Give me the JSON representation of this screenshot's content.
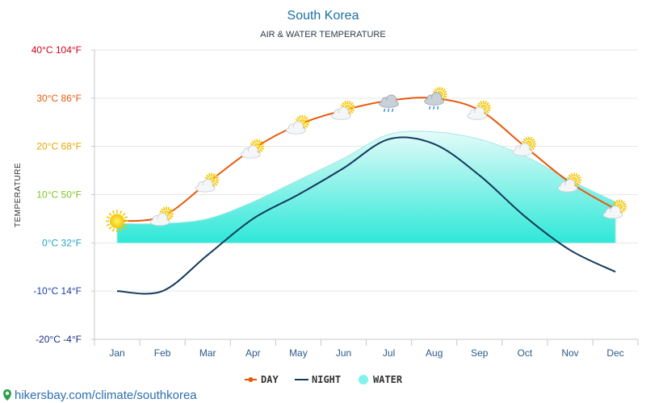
{
  "chart_data": {
    "type": "line",
    "title": "South Korea",
    "subtitle": "AIR & WATER TEMPERATURE",
    "ylabel": "TEMPERATURE",
    "categories": [
      "Jan",
      "Feb",
      "Mar",
      "Apr",
      "May",
      "Jun",
      "Jul",
      "Aug",
      "Sep",
      "Oct",
      "Nov",
      "Dec"
    ],
    "ylim": [
      -20,
      40
    ],
    "yticks": [
      {
        "value": 40,
        "label": "40°C 104°F",
        "color": "#d0021b"
      },
      {
        "value": 30,
        "label": "30°C 86°F",
        "color": "#e8590c"
      },
      {
        "value": 20,
        "label": "20°C 68°F",
        "color": "#e6a800"
      },
      {
        "value": 10,
        "label": "10°C 50°F",
        "color": "#7cc81e"
      },
      {
        "value": 0,
        "label": "0°C 32°F",
        "color": "#1fa5c8"
      },
      {
        "value": -10,
        "label": "-10°C 14°F",
        "color": "#1b3fa8"
      },
      {
        "value": -20,
        "label": "-20°C -4°F",
        "color": "#1b2a8a"
      }
    ],
    "series": [
      {
        "name": "DAY",
        "color": "#e8590c",
        "values": [
          4.5,
          5.5,
          12.5,
          19.5,
          24.5,
          27.5,
          29.5,
          30,
          27.5,
          20,
          12.5,
          7
        ]
      },
      {
        "name": "NIGHT",
        "color": "#123a5c",
        "values": [
          -10,
          -10,
          -2.5,
          5,
          10,
          15.5,
          21.5,
          20.5,
          14,
          5.5,
          -1.5,
          -6
        ]
      },
      {
        "name": "WATER",
        "color": "#7ff3ec",
        "values": [
          4,
          4,
          5,
          8.5,
          13,
          17.5,
          22.5,
          23,
          21.5,
          18,
          13,
          8.5
        ]
      }
    ],
    "weather_icons": [
      "sun-icon",
      "partly-cloudy-icon",
      "partly-cloudy-icon",
      "partly-cloudy-icon",
      "partly-cloudy-icon",
      "partly-cloudy-icon",
      "rain-cloud-icon",
      "rain-sun-icon",
      "partly-cloudy-icon",
      "partly-cloudy-icon",
      "partly-cloudy-icon",
      "partly-cloudy-icon"
    ],
    "legend_position": "bottom-center",
    "grid": true
  },
  "footer": {
    "pin_icon": "location-pin-icon",
    "text": "hikersbay.com/climate/southkorea"
  }
}
